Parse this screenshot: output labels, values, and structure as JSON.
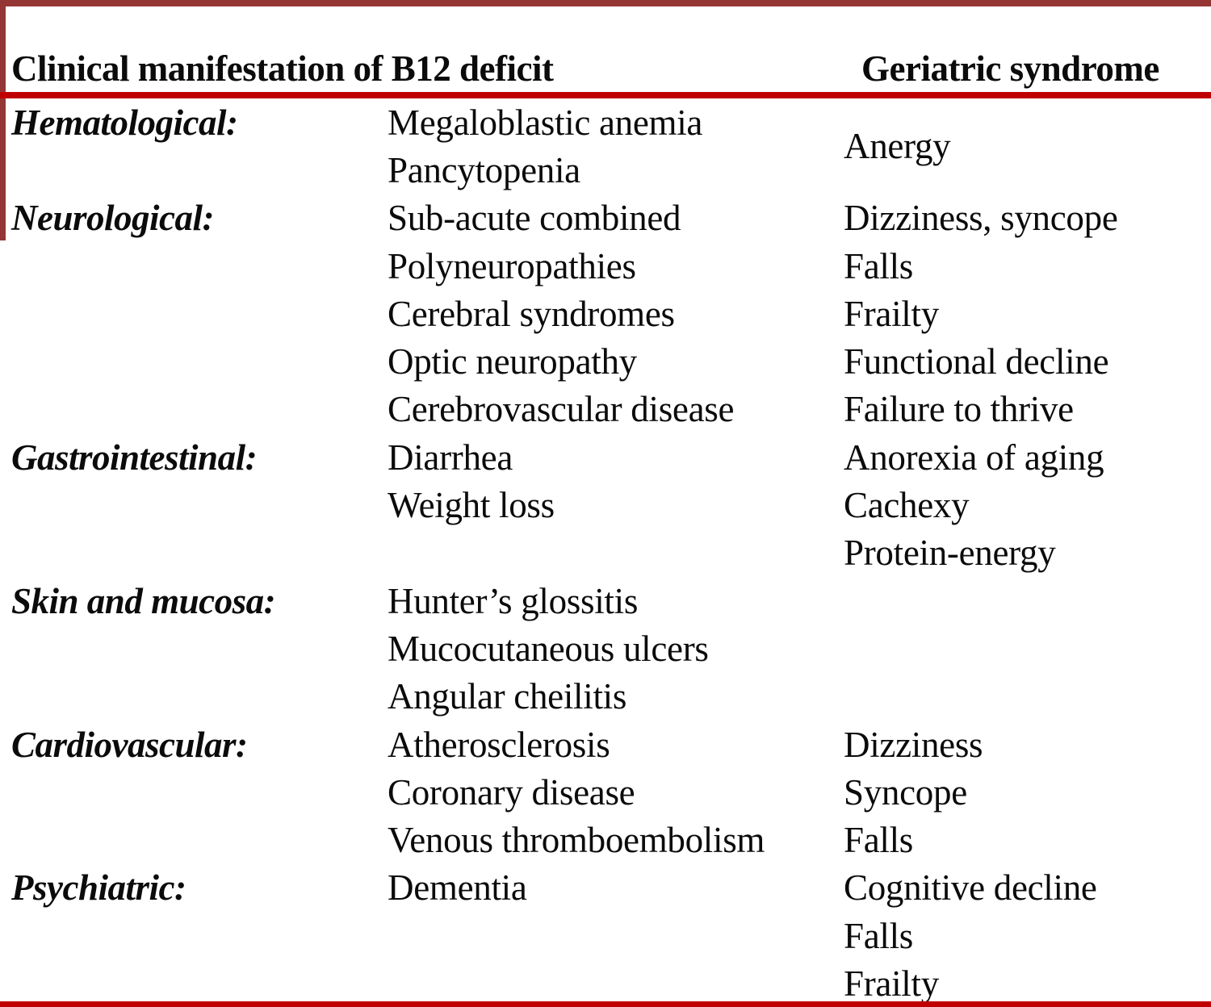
{
  "colors": {
    "maroon": "#943634",
    "red": "#C00000",
    "text": "#0B0B0B"
  },
  "table": {
    "col_manifestation_header": "Clinical manifestation of B12 deficit",
    "col_syndrome_header": "Geriatric syndrome",
    "groups": [
      {
        "category": "Hematological:",
        "manifestations": [
          "Megaloblastic anemia",
          "Pancytopenia"
        ],
        "syndromes": [
          "Anergy"
        ],
        "syndrome_valign": "center"
      },
      {
        "category": "Neurological:",
        "manifestations": [
          "Sub-acute combined",
          "Polyneuropathies",
          "Cerebral syndromes",
          "Optic neuropathy",
          "Cerebrovascular disease"
        ],
        "syndromes": [
          "Dizziness, syncope",
          "Falls",
          "Frailty",
          "Functional decline",
          "Failure to thrive"
        ]
      },
      {
        "category": "Gastrointestinal:",
        "manifestations": [
          "Diarrhea",
          "Weight loss"
        ],
        "syndromes": [
          "Anorexia of aging",
          "Cachexy",
          "Protein-energy"
        ]
      },
      {
        "category": "Skin and mucosa:",
        "manifestations": [
          "Hunter’s glossitis",
          "Mucocutaneous ulcers",
          "Angular cheilitis"
        ],
        "syndromes": []
      },
      {
        "category": "Cardiovascular:",
        "manifestations": [
          "Atherosclerosis",
          "Coronary disease",
          "Venous thromboembolism"
        ],
        "syndromes": [
          "Dizziness",
          "Syncope",
          "Falls"
        ]
      },
      {
        "category": "Psychiatric:",
        "manifestations": [
          "Dementia"
        ],
        "syndromes": [
          "Cognitive decline",
          "Falls",
          "Frailty"
        ]
      }
    ]
  }
}
